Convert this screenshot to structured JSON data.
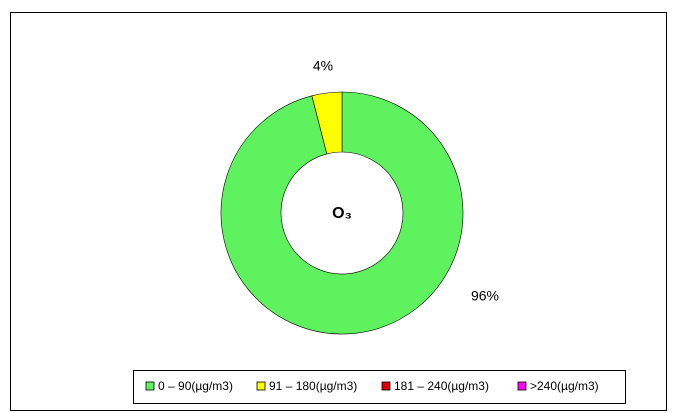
{
  "chart_data": {
    "type": "donut",
    "center_label": "O₃",
    "categories": [
      "0 – 90(µg/m3)",
      "91 – 180(µg/m3)",
      "181 – 240(µg/m3)",
      ">240(µg/m3)"
    ],
    "values": [
      96,
      4,
      0,
      0
    ],
    "value_labels": [
      "96%",
      "4%",
      null,
      null
    ],
    "colors": [
      "#5ff25f",
      "#ffff00",
      "#dd0000",
      "#ff00ff"
    ],
    "legend": "bottom"
  }
}
